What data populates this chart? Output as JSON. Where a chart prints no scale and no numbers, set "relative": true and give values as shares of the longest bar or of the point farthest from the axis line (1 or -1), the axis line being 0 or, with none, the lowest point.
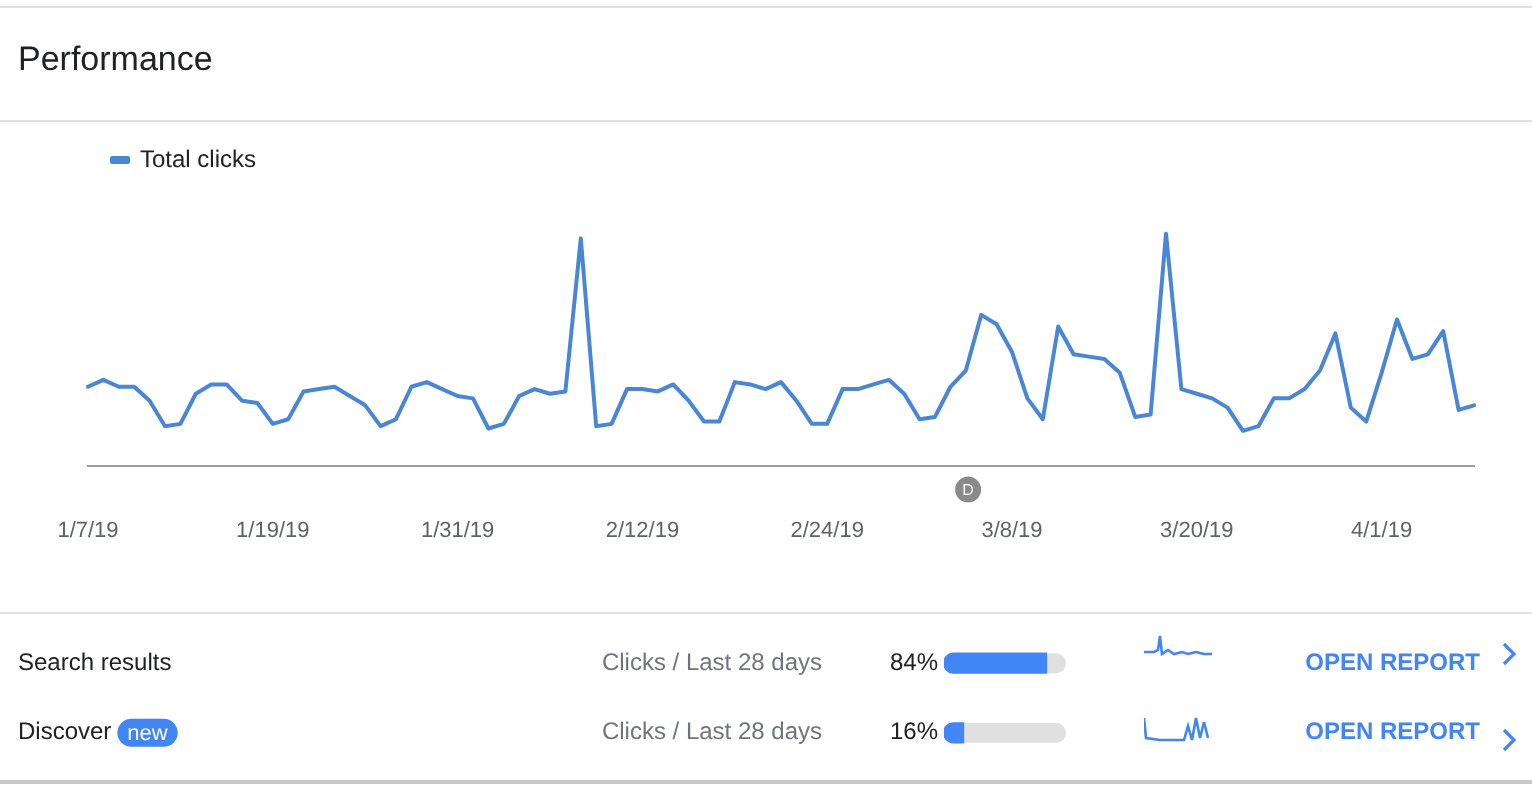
{
  "chart_data": [
    {
      "type": "line",
      "title": "Performance",
      "relative": true,
      "legend": "top left",
      "marker": "none",
      "line_style": "solid",
      "annotations": [
        "D"
      ],
      "categories": [
        "1/7/19",
        null,
        null,
        null,
        null,
        null,
        null,
        null,
        null,
        null,
        null,
        null,
        "1/19/19",
        null,
        null,
        null,
        null,
        null,
        null,
        null,
        null,
        null,
        null,
        null,
        "1/31/19",
        null,
        null,
        null,
        null,
        null,
        null,
        null,
        null,
        null,
        null,
        null,
        "2/12/19",
        null,
        null,
        null,
        null,
        null,
        null,
        null,
        null,
        null,
        null,
        null,
        "2/24/19",
        null,
        null,
        null,
        null,
        null,
        null,
        null,
        null,
        null,
        null,
        null,
        "3/8/19",
        null,
        null,
        null,
        null,
        null,
        null,
        null,
        null,
        null,
        null,
        null,
        "3/20/19",
        null,
        null,
        null,
        null,
        null,
        null,
        null,
        null,
        null,
        null,
        null,
        "4/1/19",
        null,
        null,
        null,
        null,
        null,
        null
      ],
      "series": [
        {
          "name": "Total clicks",
          "color": "#4a86d6",
          "values": [
            0.34,
            0.37,
            0.34,
            0.34,
            0.28,
            0.17,
            0.18,
            0.31,
            0.35,
            0.35,
            0.28,
            0.27,
            0.18,
            0.2,
            0.32,
            0.33,
            0.34,
            0.3,
            0.26,
            0.17,
            0.2,
            0.34,
            0.36,
            0.33,
            0.3,
            0.29,
            0.16,
            0.18,
            0.3,
            0.33,
            0.31,
            0.32,
            0.98,
            0.17,
            0.18,
            0.33,
            0.33,
            0.32,
            0.35,
            0.28,
            0.19,
            0.19,
            0.36,
            0.35,
            0.33,
            0.36,
            0.28,
            0.18,
            0.18,
            0.33,
            0.33,
            0.35,
            0.37,
            0.31,
            0.2,
            0.21,
            0.34,
            0.41,
            0.65,
            0.61,
            0.49,
            0.29,
            0.2,
            0.6,
            0.48,
            0.47,
            0.46,
            0.4,
            0.21,
            0.22,
            1,
            0.33,
            0.31,
            0.29,
            0.25,
            0.15,
            0.17,
            0.29,
            0.29,
            0.33,
            0.41,
            0.57,
            0.25,
            0.19,
            0.4,
            0.63,
            0.46,
            0.48,
            0.58,
            0.24,
            0.26
          ]
        }
      ]
    },
    {
      "type": "bar",
      "orientation": "horizontal",
      "tick_labels": "y",
      "categories": [
        "Search results",
        "Discover"
      ],
      "values": [
        84,
        16
      ],
      "value_labels": [
        "84%",
        "16%"
      ],
      "color": "#4285f4",
      "xlim": [
        0,
        100
      ],
      "annotations": [
        "new",
        "Clicks / Last 28 days",
        "OPEN REPORT",
        "Clicks / Last 28 days",
        "OPEN REPORT"
      ]
    }
  ]
}
